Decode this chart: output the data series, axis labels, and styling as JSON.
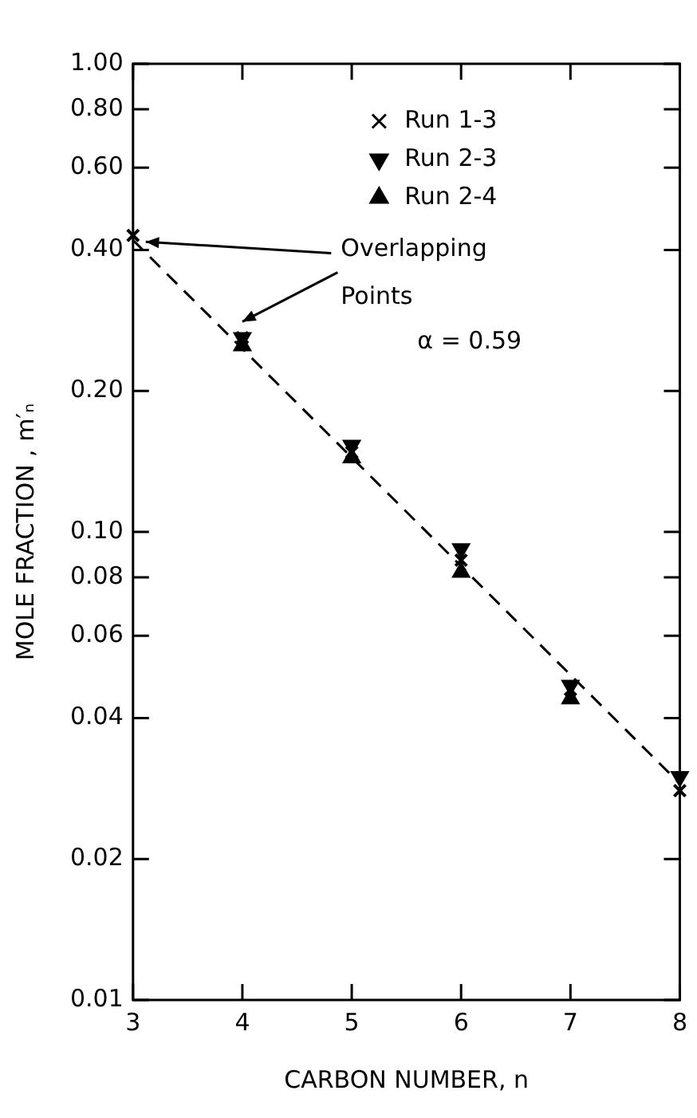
{
  "chart_data": {
    "type": "scatter",
    "xlabel": "CARBON NUMBER, n",
    "ylabel": "MOLE FRACTION , m′ₙ",
    "x": [
      3,
      4,
      5,
      6,
      7,
      8
    ],
    "series": [
      {
        "name": "Run 1-3",
        "color": "#000000",
        "marker": "cross",
        "values": [
          0.43,
          0.26,
          0.148,
          0.087,
          0.046,
          0.028
        ]
      },
      {
        "name": "Run 2-3",
        "color": "#000000",
        "marker": "triangle-down",
        "values": [
          null,
          0.26,
          0.153,
          0.092,
          0.047,
          0.03
        ]
      },
      {
        "name": "Run 2-4",
        "color": "#000000",
        "marker": "triangle",
        "values": [
          null,
          0.25,
          0.144,
          0.082,
          0.044,
          null
        ]
      },
      {
        "type": "line",
        "color": "#000000",
        "marker": "none",
        "line_style": "dashed",
        "x": [
          3,
          8
        ],
        "values": [
          0.42,
          0.029
        ]
      }
    ],
    "log": "y",
    "xlim": [
      3,
      8
    ],
    "xticks": [
      3,
      4,
      5,
      6,
      7,
      8
    ],
    "ylim": [
      0.01,
      1
    ],
    "yticks": [
      {
        "value": 0.01,
        "label": "0.01"
      },
      {
        "value": 0.02,
        "label": "0.02"
      },
      {
        "value": 0.04,
        "label": "0.04"
      },
      {
        "value": 0.06,
        "label": "0.06"
      },
      {
        "value": 0.08,
        "label": "0.08"
      },
      {
        "value": 0.1,
        "label": "0.10"
      },
      {
        "value": 0.2,
        "label": "0.20"
      },
      {
        "value": 0.4,
        "label": "0.40"
      },
      {
        "value": 0.6,
        "label": "0.60"
      },
      {
        "value": 0.8,
        "label": "0.80"
      },
      {
        "value": 1,
        "label": "1.00"
      }
    ],
    "grid": false,
    "legend": "top right",
    "annotations": [
      {
        "text": "Overlapping Points",
        "x": 3,
        "y": 0.43
      },
      "α = 0.59"
    ]
  }
}
